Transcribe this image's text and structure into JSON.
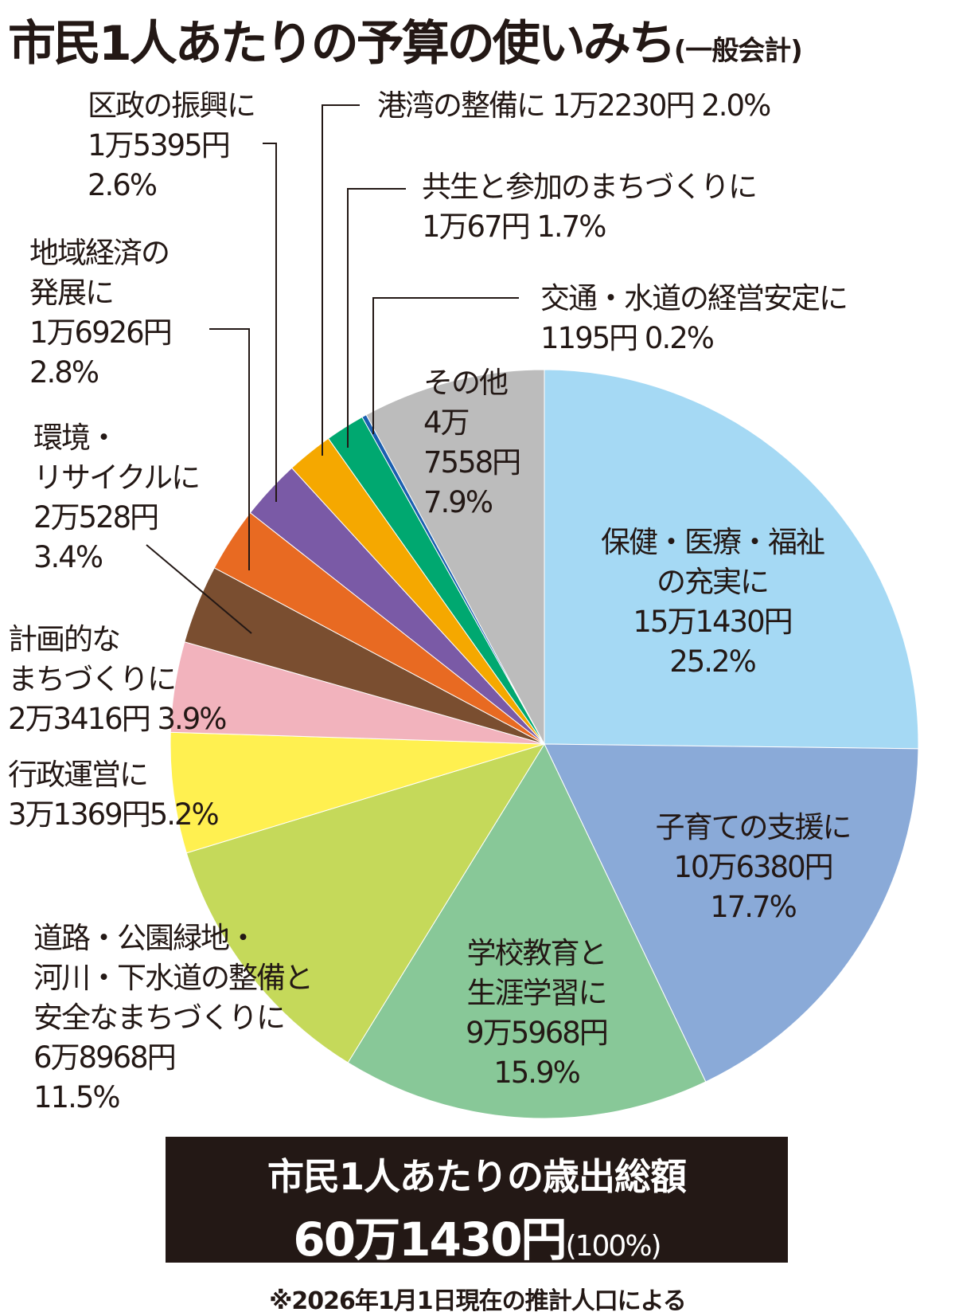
{
  "title": "市民1人あたりの予算の使いみち",
  "title_sub": "(一般会計)",
  "chart_data": {
    "type": "pie",
    "title": "市民1人あたりの予算の使いみち(一般会計)",
    "start": "12 o'clock, clockwise",
    "slices": [
      {
        "name": "保健・医療・福祉の充実に",
        "amount": "15万1430円",
        "percent": 25.2,
        "color": "#a5d9f4"
      },
      {
        "name": "子育ての支援に",
        "amount": "10万6380円",
        "percent": 17.7,
        "color": "#8aaad8"
      },
      {
        "name": "学校教育と生涯学習に",
        "amount": "9万5968円",
        "percent": 15.9,
        "color": "#88c898"
      },
      {
        "name": "道路・公園緑地・河川・下水道の整備と安全なまちづくりに",
        "amount": "6万8968円",
        "percent": 11.5,
        "color": "#c5d95a"
      },
      {
        "name": "行政運営に",
        "amount": "3万1369円",
        "percent": 5.2,
        "color": "#fff050"
      },
      {
        "name": "計画的なまちづくりに",
        "amount": "2万3416円",
        "percent": 3.9,
        "color": "#f2b3bd"
      },
      {
        "name": "環境・リサイクルに",
        "amount": "2万528円",
        "percent": 3.4,
        "color": "#7a4e30"
      },
      {
        "name": "地域経済の発展に",
        "amount": "1万6926円",
        "percent": 2.8,
        "color": "#e86a22"
      },
      {
        "name": "区政の振興に",
        "amount": "1万5395円",
        "percent": 2.6,
        "color": "#7a5aa6"
      },
      {
        "name": "港湾の整備に",
        "amount": "1万2230円",
        "percent": 2.0,
        "color": "#f5a800"
      },
      {
        "name": "共生と参加のまちづくりに",
        "amount": "1万67円",
        "percent": 1.7,
        "color": "#00a870"
      },
      {
        "name": "交通・水道の経営安定に",
        "amount": "1195円",
        "percent": 0.2,
        "color": "#1a5fb0"
      },
      {
        "name": "その他",
        "amount": "4万7558円",
        "percent": 7.9,
        "color": "#bcbcbc"
      }
    ]
  },
  "labels": {
    "health": [
      "保健・医療・福祉",
      "の充実に",
      "15万1430円",
      "25.2%"
    ],
    "child": [
      "子育ての支援に",
      "10万6380円",
      "17.7%"
    ],
    "school": [
      "学校教育と",
      "生涯学習に",
      "9万5968円",
      "15.9%"
    ],
    "road": [
      "道路・公園緑地・",
      "河川・下水道の整備と",
      "安全なまちづくりに",
      "6万8968円",
      "11.5%"
    ],
    "admin": [
      "行政運営に",
      "3万1369円5.2%"
    ],
    "plan": [
      "計画的な",
      "まちづくりに",
      "2万3416円 3.9%"
    ],
    "env": [
      "環境・",
      "リサイクルに",
      "2万528円",
      "3.4%"
    ],
    "econ": [
      "地域経済の",
      "発展に",
      "1万6926円",
      "2.8%"
    ],
    "ward": [
      "区政の振興に",
      "1万5395円",
      "2.6%"
    ],
    "port": [
      "港湾の整備に 1万2230円 2.0%"
    ],
    "kyosei": [
      "共生と参加のまちづくりに",
      "1万67円 1.7%"
    ],
    "transport": [
      "交通・水道の経営安定に",
      "1195円 0.2%"
    ],
    "other": [
      "その他",
      "4万",
      "7558円",
      "7.9%"
    ]
  },
  "total": {
    "label": "市民1人あたりの歳出総額",
    "amount": "60万1430円",
    "percent": "(100%)"
  },
  "footnote": "※2026年1月1日現在の推計人口による"
}
